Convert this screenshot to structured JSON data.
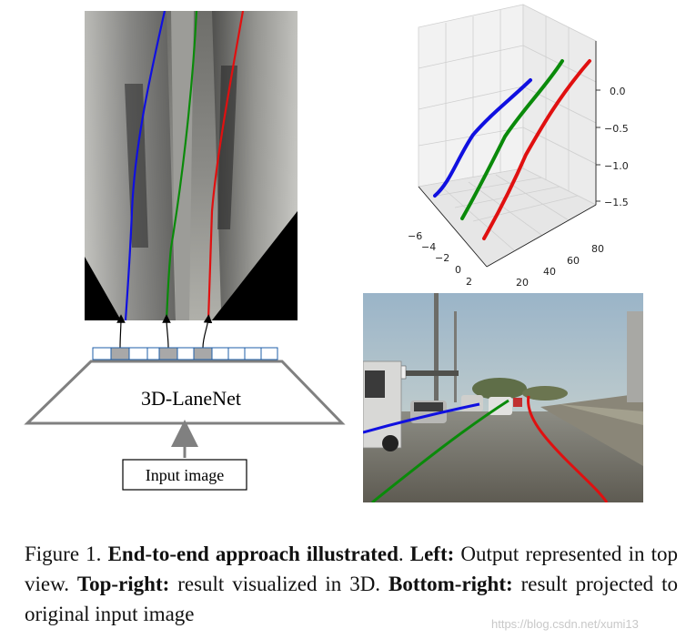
{
  "figure": {
    "network_label": "3D-LaneNet",
    "input_label": "Input image",
    "plot3d": {
      "z_ticks": [
        "0.0",
        "−0.5",
        "−1.0",
        "−1.5"
      ],
      "x_ticks": [
        "20",
        "40",
        "60",
        "80"
      ],
      "y_ticks": [
        "−6",
        "−4",
        "−2",
        "0",
        "2"
      ]
    },
    "lane_colors": {
      "left": "#1010e0",
      "center": "#0a8a0a",
      "right": "#e01010"
    }
  },
  "caption": {
    "prefix": "Figure 1. ",
    "title": "End-to-end approach illustrated",
    "sep": ". ",
    "left_label": "Left:",
    "left_text": " Output represented in top view. ",
    "topright_label": "Top-right:",
    "topright_text": " result visualized in 3D. ",
    "bottomright_label": "Bottom-right:",
    "bottomright_text": " result projected to original input image"
  },
  "watermark": "https://blog.csdn.net/xumi13"
}
